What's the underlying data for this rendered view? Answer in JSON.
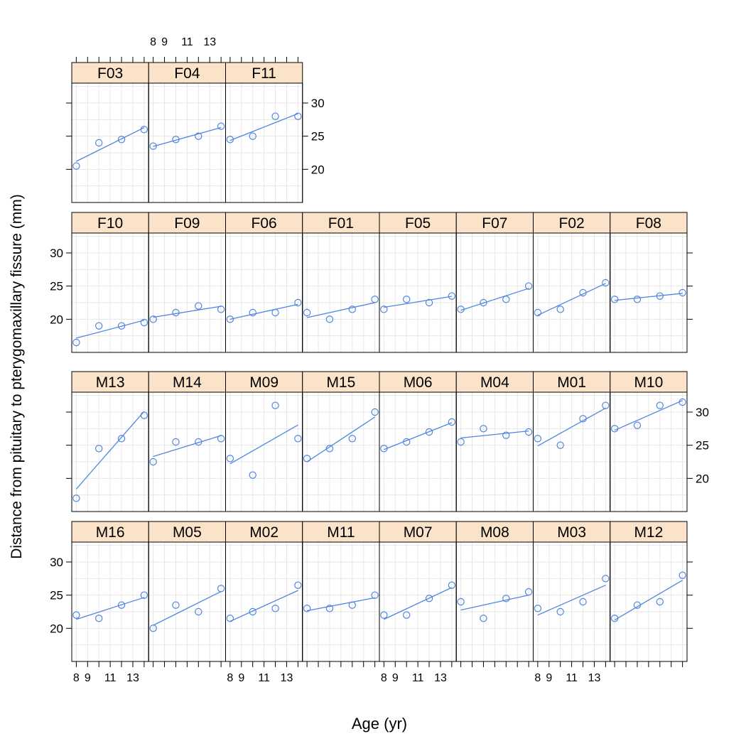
{
  "chart_data": {
    "type": "scatter",
    "xlabel": "Age (yr)",
    "ylabel": "Distance from pituitary to pterygomaxillary fissure (mm)",
    "x": [
      8,
      10,
      12,
      14
    ],
    "xlim": [
      7.6,
      14.4
    ],
    "ylim": [
      15,
      33
    ],
    "x_tick_labels": [
      "8",
      "9",
      "11",
      "13"
    ],
    "y_tick_labels": [
      "20",
      "25",
      "30"
    ],
    "grid": true,
    "fit": "per-subject least-squares line",
    "rows": [
      {
        "panels": [
          {
            "subject": "F03",
            "y": [
              20.5,
              24.0,
              24.5,
              26.0
            ]
          },
          {
            "subject": "F04",
            "y": [
              23.5,
              24.5,
              25.0,
              26.5
            ]
          },
          {
            "subject": "F11",
            "y": [
              24.5,
              25.0,
              28.0,
              28.0
            ]
          }
        ]
      },
      {
        "panels": [
          {
            "subject": "F10",
            "y": [
              16.5,
              19.0,
              19.0,
              19.5
            ]
          },
          {
            "subject": "F09",
            "y": [
              20.0,
              21.0,
              22.0,
              21.5
            ]
          },
          {
            "subject": "F06",
            "y": [
              20.0,
              21.0,
              21.0,
              22.5
            ]
          },
          {
            "subject": "F01",
            "y": [
              21.0,
              20.0,
              21.5,
              23.0
            ]
          },
          {
            "subject": "F05",
            "y": [
              21.5,
              23.0,
              22.5,
              23.5
            ]
          },
          {
            "subject": "F07",
            "y": [
              21.5,
              22.5,
              23.0,
              25.0
            ]
          },
          {
            "subject": "F02",
            "y": [
              21.0,
              21.5,
              24.0,
              25.5
            ]
          },
          {
            "subject": "F08",
            "y": [
              23.0,
              23.0,
              23.5,
              24.0
            ]
          }
        ]
      },
      {
        "panels": [
          {
            "subject": "M13",
            "y": [
              17.0,
              24.5,
              26.0,
              29.5
            ]
          },
          {
            "subject": "M14",
            "y": [
              22.5,
              25.5,
              25.5,
              26.0
            ]
          },
          {
            "subject": "M09",
            "y": [
              23.0,
              20.5,
              31.0,
              26.0
            ]
          },
          {
            "subject": "M15",
            "y": [
              23.0,
              24.5,
              26.0,
              30.0
            ]
          },
          {
            "subject": "M06",
            "y": [
              24.5,
              25.5,
              27.0,
              28.5
            ]
          },
          {
            "subject": "M04",
            "y": [
              25.5,
              27.5,
              26.5,
              27.0
            ]
          },
          {
            "subject": "M01",
            "y": [
              26.0,
              25.0,
              29.0,
              31.0
            ]
          },
          {
            "subject": "M10",
            "y": [
              27.5,
              28.0,
              31.0,
              31.5
            ]
          }
        ]
      },
      {
        "panels": [
          {
            "subject": "M16",
            "y": [
              22.0,
              21.5,
              23.5,
              25.0
            ]
          },
          {
            "subject": "M05",
            "y": [
              20.0,
              23.5,
              22.5,
              26.0
            ]
          },
          {
            "subject": "M02",
            "y": [
              21.5,
              22.5,
              23.0,
              26.5
            ]
          },
          {
            "subject": "M11",
            "y": [
              23.0,
              23.0,
              23.5,
              25.0
            ]
          },
          {
            "subject": "M07",
            "y": [
              22.0,
              22.0,
              24.5,
              26.5
            ]
          },
          {
            "subject": "M08",
            "y": [
              24.0,
              21.5,
              24.5,
              25.5
            ]
          },
          {
            "subject": "M03",
            "y": [
              23.0,
              22.5,
              24.0,
              27.5
            ]
          },
          {
            "subject": "M12",
            "y": [
              21.5,
              23.5,
              24.0,
              28.0
            ]
          }
        ]
      }
    ],
    "colors": {
      "points": "#4f85e0",
      "strip": "#fae3c8",
      "grid": "#e6e6e6"
    }
  }
}
